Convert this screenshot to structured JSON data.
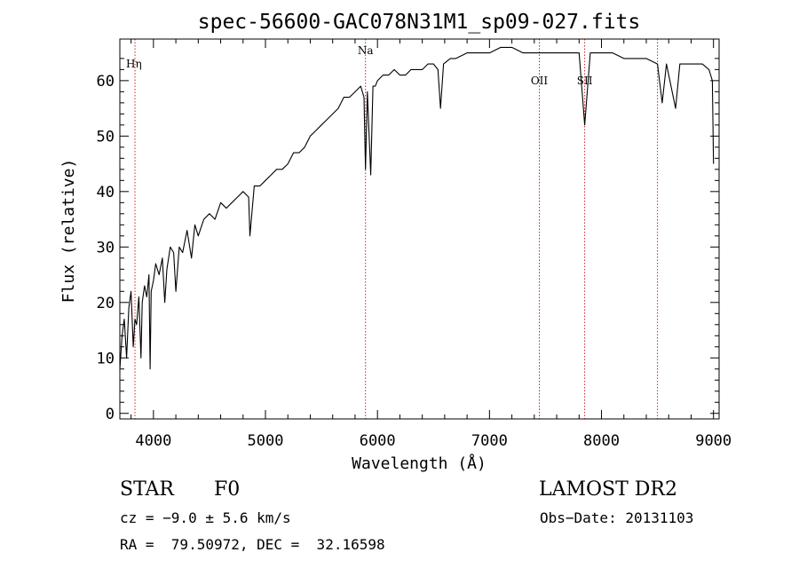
{
  "chart_data": {
    "type": "line",
    "title": "spec-56600-GAC078N31M1_sp09-027.fits",
    "xlabel": "Wavelength (Å)",
    "ylabel": "Flux (relative)",
    "xlim": [
      3700,
      9050
    ],
    "ylim": [
      -1,
      67.5
    ],
    "xticks": [
      4000,
      5000,
      6000,
      7000,
      8000,
      9000
    ],
    "yticks": [
      0,
      10,
      20,
      30,
      40,
      50,
      60
    ],
    "grid": false,
    "line_color": "#000000",
    "marker_color": "#cc2222",
    "spectral_lines": [
      {
        "label": "Hη",
        "x": 3835
      },
      {
        "label": "Na",
        "x": 5893
      },
      {
        "label": "OII",
        "x": 7445
      },
      {
        "label": "SII",
        "x": 7850
      },
      {
        "label": "",
        "x": 8500
      }
    ],
    "series": [
      {
        "x": [
          3700,
          3720,
          3740,
          3760,
          3780,
          3800,
          3820,
          3835,
          3850,
          3870,
          3889,
          3900,
          3920,
          3940,
          3960,
          3970,
          3980,
          4000,
          4020,
          4050,
          4080,
          4101,
          4120,
          4150,
          4180,
          4200,
          4230,
          4260,
          4300,
          4340,
          4370,
          4400,
          4450,
          4500,
          4550,
          4600,
          4650,
          4700,
          4750,
          4800,
          4850,
          4861,
          4900,
          4950,
          5000,
          5050,
          5100,
          5150,
          5200,
          5250,
          5300,
          5350,
          5400,
          5450,
          5500,
          5550,
          5600,
          5650,
          5700,
          5750,
          5800,
          5850,
          5880,
          5893,
          5910,
          5940,
          5960,
          5980,
          6000,
          6050,
          6100,
          6150,
          6200,
          6250,
          6300,
          6350,
          6400,
          6450,
          6500,
          6540,
          6563,
          6590,
          6650,
          6700,
          6800,
          6900,
          7000,
          7100,
          7200,
          7300,
          7400,
          7500,
          7600,
          7700,
          7800,
          7850,
          7900,
          8000,
          8100,
          8200,
          8300,
          8400,
          8500,
          8542,
          8580,
          8662,
          8700,
          8800,
          8900,
          8960,
          8990,
          9000
        ],
        "y": [
          8,
          14,
          17,
          10,
          19,
          22,
          12,
          17,
          16,
          21,
          10,
          20,
          23,
          21,
          25,
          8,
          22,
          24,
          27,
          25,
          28,
          20,
          26,
          30,
          29,
          22,
          30,
          29,
          33,
          28,
          34,
          32,
          35,
          36,
          35,
          38,
          37,
          38,
          39,
          40,
          39,
          32,
          41,
          41,
          42,
          43,
          44,
          44,
          45,
          47,
          47,
          48,
          50,
          51,
          52,
          53,
          54,
          55,
          57,
          57,
          58,
          59,
          57,
          44,
          58,
          43,
          59,
          59,
          60,
          61,
          61,
          62,
          61,
          61,
          62,
          62,
          62,
          63,
          63,
          62,
          55,
          63,
          64,
          64,
          65,
          65,
          65,
          66,
          66,
          65,
          65,
          65,
          65,
          65,
          65,
          52,
          65,
          65,
          65,
          64,
          64,
          64,
          63,
          56,
          63,
          55,
          63,
          63,
          63,
          62,
          60,
          45
        ]
      }
    ]
  },
  "info": {
    "object_type": "STAR",
    "subclass": "F0",
    "survey": "LAMOST DR2",
    "cz": "cz = −9.0 ± 5.6 km/s",
    "obs_date": "Obs−Date: 20131103",
    "coords": "RA =  79.50972, DEC =  32.16598"
  }
}
